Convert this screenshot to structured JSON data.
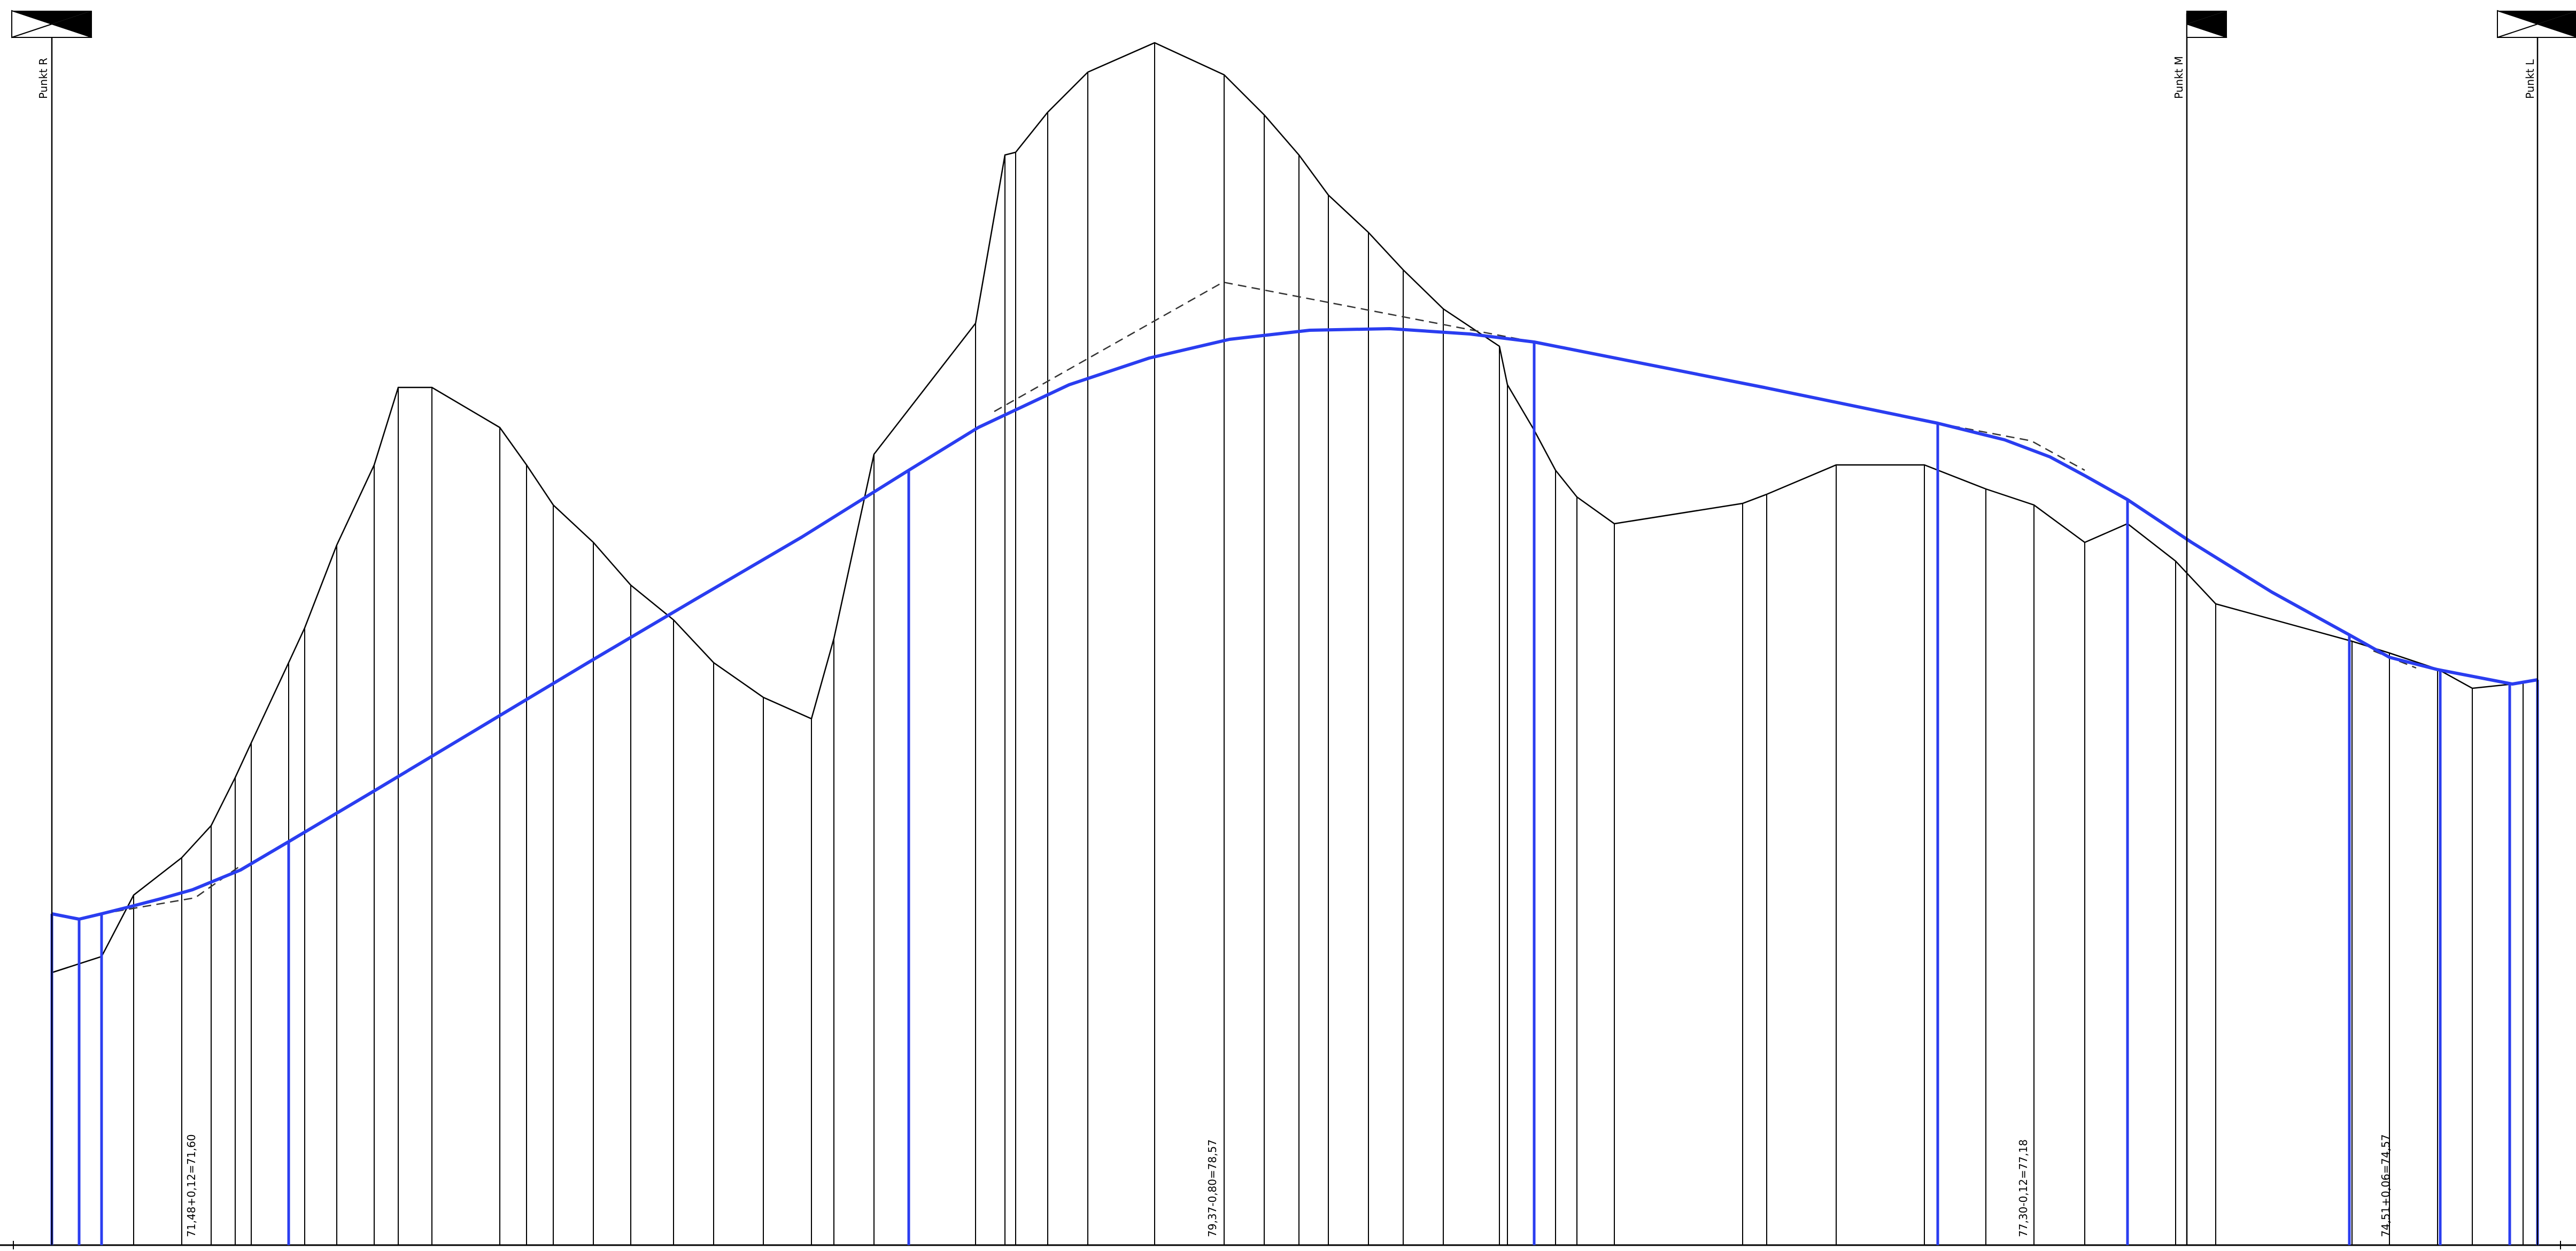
{
  "drawing": {
    "colors": {
      "terrain": "#000000",
      "design": "#2a3df0",
      "background": "#ffffff"
    },
    "stations": [
      {
        "label": "Punkt  R",
        "icon": "station-flag-icon"
      },
      {
        "label": "Punkt  M",
        "icon": "station-flag-icon"
      },
      {
        "label": "Punkt  L",
        "icon": "station-flag-icon"
      }
    ],
    "elevation_labels": [
      "71,48+0,12=71,60",
      "79,37-0,80=78,57",
      "77,30-0,12=77,18",
      "74,51+0,06=74,57"
    ],
    "legend": {
      "terrain_line": "terrain-profile",
      "design_line": "design-profile",
      "previous_design_line": "previous-design-profile"
    }
  }
}
